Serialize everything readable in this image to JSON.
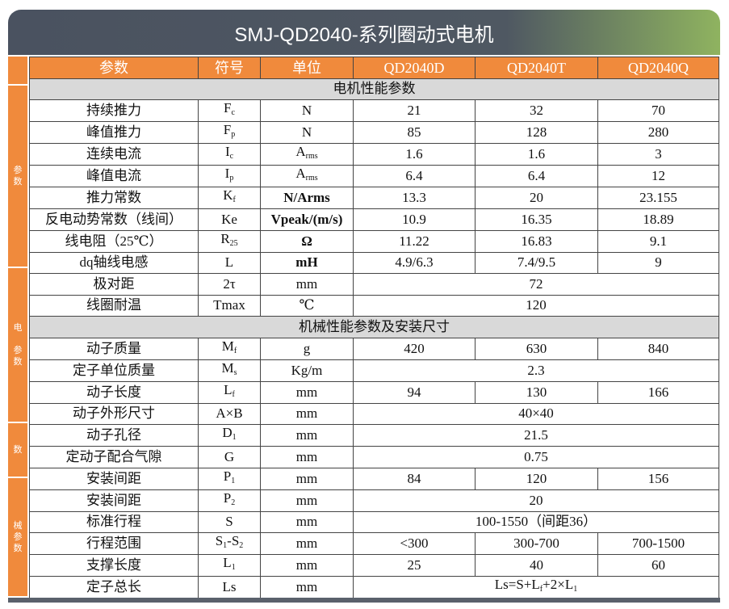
{
  "title": "SMJ-QD2040-系列圈动式电机",
  "side_labels": [
    "",
    "参\n数",
    "电\n\n参\n数",
    "数",
    "械\n参\n数"
  ],
  "header": [
    "参数",
    "符号",
    "单位",
    "QD2040D",
    "QD2040T",
    "QD2040Q"
  ],
  "sections": [
    {
      "title": "电机性能参数",
      "rows": [
        {
          "param": "持续推力",
          "symbol": [
            "F",
            "c"
          ],
          "unit": [
            "N"
          ],
          "values": [
            "21",
            "32",
            "70"
          ]
        },
        {
          "param": "峰值推力",
          "symbol": [
            "F",
            "p"
          ],
          "unit": [
            "N"
          ],
          "values": [
            "85",
            "128",
            "280"
          ]
        },
        {
          "param": "连续电流",
          "symbol": [
            "I",
            "c"
          ],
          "unit": [
            "A",
            "rms"
          ],
          "values": [
            "1.6",
            "1.6",
            "3"
          ]
        },
        {
          "param": "峰值电流",
          "symbol": [
            "I",
            "p"
          ],
          "unit": [
            "A",
            "rms"
          ],
          "values": [
            "6.4",
            "6.4",
            "12"
          ]
        },
        {
          "param": "推力常数",
          "symbol": [
            "K",
            "f"
          ],
          "unit": [
            "N/Arms"
          ],
          "bold_unit": true,
          "values": [
            "13.3",
            "20",
            "23.155"
          ]
        },
        {
          "param": "反电动势常数（线间）",
          "symbol": [
            "Ke"
          ],
          "unit": [
            "Vpeak/(m/s)"
          ],
          "bold_unit": true,
          "values": [
            "10.9",
            "16.35",
            "18.89"
          ]
        },
        {
          "param": "线电阻（25℃）",
          "symbol": [
            "R",
            "25"
          ],
          "unit": [
            "Ω"
          ],
          "bold_unit": true,
          "values": [
            "11.22",
            "16.83",
            "9.1"
          ]
        },
        {
          "param": "dq轴线电感",
          "symbol": [
            "L"
          ],
          "unit": [
            "mH"
          ],
          "bold_unit": true,
          "values": [
            "4.9/6.3",
            "7.4/9.5",
            "9"
          ]
        },
        {
          "param": "极对距",
          "symbol": [
            "2τ"
          ],
          "unit": [
            "mm"
          ],
          "values": [
            "72"
          ]
        },
        {
          "param": "线圈耐温",
          "symbol": [
            "Tmax"
          ],
          "unit": [
            "℃"
          ],
          "values": [
            "120"
          ]
        }
      ]
    },
    {
      "title": "机械性能参数及安装尺寸",
      "rows": [
        {
          "param": "动子质量",
          "symbol": [
            "M",
            "f"
          ],
          "unit": [
            "g"
          ],
          "values": [
            "420",
            "630",
            "840"
          ]
        },
        {
          "param": "定子单位质量",
          "symbol": [
            "M",
            "s"
          ],
          "unit": [
            "Kg/m"
          ],
          "values": [
            "2.3"
          ]
        },
        {
          "param": "动子长度",
          "symbol": [
            "L",
            "f"
          ],
          "unit": [
            "mm"
          ],
          "values": [
            "94",
            "130",
            "166"
          ]
        },
        {
          "param": "动子外形尺寸",
          "symbol": [
            "A×B"
          ],
          "unit": [
            "mm"
          ],
          "values": [
            "40×40"
          ]
        },
        {
          "param": "动子孔径",
          "symbol": [
            "D",
            "1"
          ],
          "unit": [
            "mm"
          ],
          "values": [
            "21.5"
          ]
        },
        {
          "param": "定动子配合气隙",
          "symbol": [
            "G"
          ],
          "unit": [
            "mm"
          ],
          "values": [
            "0.75"
          ]
        },
        {
          "param": "安装间距",
          "symbol": [
            "P",
            "1"
          ],
          "unit": [
            "mm"
          ],
          "values": [
            "84",
            "120",
            "156"
          ]
        },
        {
          "param": "安装间距",
          "symbol": [
            "P",
            "2"
          ],
          "unit": [
            "mm"
          ],
          "values": [
            "20"
          ]
        },
        {
          "param": "标准行程",
          "symbol": [
            "S"
          ],
          "unit": [
            "mm"
          ],
          "values": [
            "100-1550（间距36）"
          ]
        },
        {
          "param": "行程范围",
          "symbol": [
            "S",
            "1",
            "-S",
            "2"
          ],
          "unit": [
            "mm"
          ],
          "values": [
            "<300",
            "300-700",
            "700-1500"
          ]
        },
        {
          "param": "支撑长度",
          "symbol": [
            "L",
            "1"
          ],
          "unit": [
            "mm"
          ],
          "values": [
            "25",
            "40",
            "60"
          ]
        },
        {
          "param": "定子总长",
          "symbol": [
            "Ls"
          ],
          "unit": [
            "mm"
          ],
          "values": [
            "Ls=S+L",
            "f",
            "+2×L",
            "1"
          ],
          "formula": true
        }
      ]
    }
  ]
}
